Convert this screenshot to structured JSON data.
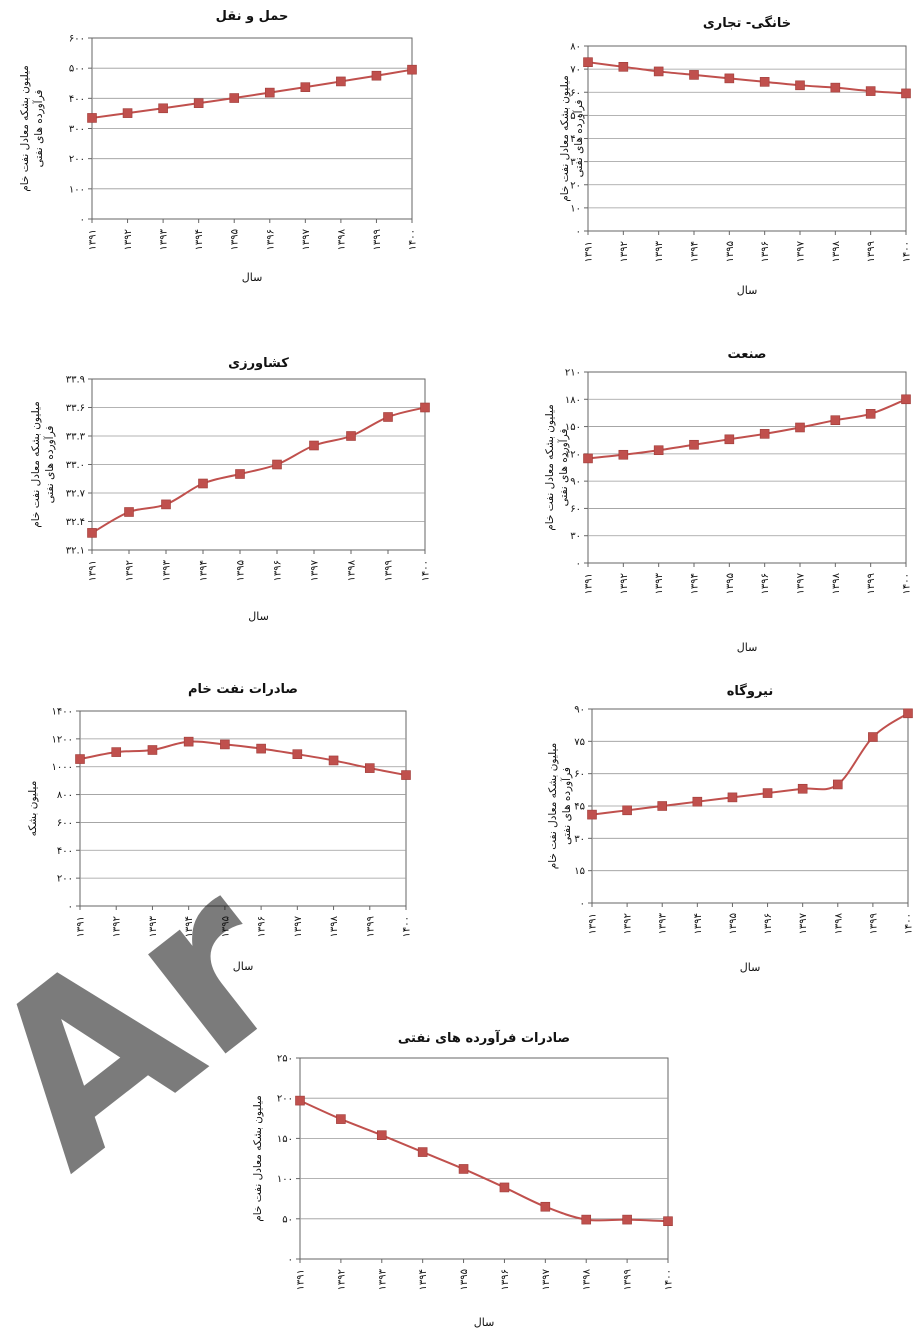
{
  "style": {
    "line_color": "#c0504d",
    "marker_color": "#c0504d",
    "grid_color": "#9a9a9a",
    "watermark_color": "#c8c8c8"
  },
  "watermark": {
    "text": "Ar",
    "icon": "watermark-logo"
  },
  "chart_data": [
    {
      "id": "transport",
      "type": "line",
      "title": "حمل و نقل",
      "xlabel": "سال",
      "ylabel": [
        "میلیون بشکه معادل نفت خام",
        "فرآورده های نفتی"
      ],
      "categories": [
        "۱۳۹۱",
        "۱۳۹۲",
        "۱۳۹۳",
        "۱۳۹۴",
        "۱۳۹۵",
        "۱۳۹۶",
        "۱۳۹۷",
        "۱۳۹۸",
        "۱۳۹۹",
        "۱۴۰۰"
      ],
      "values": [
        335,
        351,
        367,
        384,
        401,
        419,
        437,
        456,
        475,
        495
      ],
      "ylim": [
        0,
        600
      ],
      "yticks": [
        0,
        100,
        200,
        300,
        400,
        500,
        600
      ],
      "ytick_labels": [
        "۰",
        "۱۰۰",
        "۲۰۰",
        "۳۰۰",
        "۴۰۰",
        "۵۰۰",
        "۶۰۰"
      ],
      "grid": true
    },
    {
      "id": "residential",
      "type": "line",
      "title": "خانگی- تجاری",
      "xlabel": "سال",
      "ylabel": [
        "میلیون بشکه معادل نفت خام",
        "فرآورده های نفتی"
      ],
      "categories": [
        "۱۳۹۱",
        "۱۳۹۲",
        "۱۳۹۳",
        "۱۳۹۴",
        "۱۳۹۵",
        "۱۳۹۶",
        "۱۳۹۷",
        "۱۳۹۸",
        "۱۳۹۹",
        "۱۴۰۰"
      ],
      "values": [
        73,
        71,
        69,
        67.5,
        66,
        64.5,
        63,
        62,
        60.5,
        59.5
      ],
      "ylim": [
        0,
        80
      ],
      "yticks": [
        0,
        10,
        20,
        30,
        40,
        50,
        60,
        70,
        80
      ],
      "ytick_labels": [
        "۰",
        "۱۰",
        "۲۰",
        "۳۰",
        "۴۰",
        "۵۰",
        "۶۰",
        "۷۰",
        "۸۰"
      ],
      "grid": true
    },
    {
      "id": "agriculture",
      "type": "line",
      "title": "کشاورزی",
      "xlabel": "سال",
      "ylabel": [
        "میلیون بشکه معادل نفت خام",
        "فرآورده های نفتی"
      ],
      "categories": [
        "۱۳۹۱",
        "۱۳۹۲",
        "۱۳۹۳",
        "۱۳۹۴",
        "۱۳۹۵",
        "۱۳۹۶",
        "۱۳۹۷",
        "۱۳۹۸",
        "۱۳۹۹",
        "۱۴۰۰"
      ],
      "values": [
        32.28,
        32.5,
        32.58,
        32.8,
        32.9,
        33.0,
        33.2,
        33.3,
        33.5,
        33.6
      ],
      "ylim": [
        32.1,
        33.9
      ],
      "yticks": [
        32.1,
        32.4,
        32.7,
        33.0,
        33.3,
        33.6,
        33.9
      ],
      "ytick_labels": [
        "۳۲.۱",
        "۳۲.۴",
        "۳۲.۷",
        "۳۳.۰",
        "۳۳.۳",
        "۳۳.۶",
        "۳۳.۹"
      ],
      "grid": true
    },
    {
      "id": "industry",
      "type": "line",
      "title": "صنعت",
      "xlabel": "سال",
      "ylabel": [
        "میلیون بشکه معادل نفت خام",
        "فرآورده های نفتی"
      ],
      "categories": [
        "۱۳۹۱",
        "۱۳۹۲",
        "۱۳۹۳",
        "۱۳۹۴",
        "۱۳۹۵",
        "۱۳۹۶",
        "۱۳۹۷",
        "۱۳۹۸",
        "۱۳۹۹",
        "۱۴۰۰"
      ],
      "values": [
        115,
        119,
        124,
        130,
        136,
        142,
        149,
        157,
        164,
        180
      ],
      "ylim": [
        0,
        210
      ],
      "yticks": [
        0,
        30,
        60,
        90,
        120,
        150,
        180,
        210
      ],
      "ytick_labels": [
        "۰",
        "۳۰",
        "۶۰",
        "۹۰",
        "۱۲۰",
        "۱۵۰",
        "۱۸۰",
        "۲۱۰"
      ],
      "grid": true
    },
    {
      "id": "crude-export",
      "type": "line",
      "title": "صادرات نفت خام",
      "xlabel": "سال",
      "ylabel": [
        "میلیون بشکه"
      ],
      "categories": [
        "۱۳۹۱",
        "۱۳۹۲",
        "۱۳۹۳",
        "۱۳۹۴",
        "۱۳۹۵",
        "۱۳۹۶",
        "۱۳۹۷",
        "۱۳۹۸",
        "۱۳۹۹",
        "۱۴۰۰"
      ],
      "values": [
        1055,
        1105,
        1120,
        1180,
        1160,
        1130,
        1090,
        1045,
        990,
        940
      ],
      "ylim": [
        0,
        1400
      ],
      "yticks": [
        0,
        200,
        400,
        600,
        800,
        1000,
        1200,
        1400
      ],
      "ytick_labels": [
        "۰",
        "۲۰۰",
        "۴۰۰",
        "۶۰۰",
        "۸۰۰",
        "۱۰۰۰",
        "۱۲۰۰",
        "۱۴۰۰"
      ],
      "grid": true
    },
    {
      "id": "power-plant",
      "type": "line",
      "title": "نیروگاه",
      "xlabel": "سال",
      "ylabel": [
        "میلیون بشکه معادل نفت خام",
        "فرآورده های نفتی"
      ],
      "categories": [
        "۱۳۹۱",
        "۱۳۹۲",
        "۱۳۹۳",
        "۱۳۹۴",
        "۱۳۹۵",
        "۱۳۹۶",
        "۱۳۹۷",
        "۱۳۹۸",
        "۱۳۹۹",
        "۱۴۰۰"
      ],
      "values": [
        41,
        43,
        45,
        47,
        49,
        51,
        53,
        55,
        77,
        88
      ],
      "ylim": [
        0,
        90
      ],
      "yticks": [
        0,
        15,
        30,
        45,
        60,
        75,
        90
      ],
      "ytick_labels": [
        "۰",
        "۱۵",
        "۳۰",
        "۴۵",
        "۶۰",
        "۷۵",
        "۹۰"
      ],
      "grid": true
    },
    {
      "id": "product-export",
      "type": "line",
      "title": "صادرات فرآورده های نفتی",
      "xlabel": "سال",
      "ylabel": [
        "میلیون بشکه معادل نفت خام"
      ],
      "categories": [
        "۱۳۹۱",
        "۱۳۹۲",
        "۱۳۹۳",
        "۱۳۹۴",
        "۱۳۹۵",
        "۱۳۹۶",
        "۱۳۹۷",
        "۱۳۹۸",
        "۱۳۹۹",
        "۱۴۰۰"
      ],
      "values": [
        197,
        174,
        154,
        133,
        112,
        89,
        65,
        49,
        49,
        47
      ],
      "ylim": [
        0,
        250
      ],
      "yticks": [
        0,
        50,
        100,
        150,
        200,
        250
      ],
      "ytick_labels": [
        "۰",
        "۵۰",
        "۱۰۰",
        "۱۵۰",
        "۲۰۰",
        "۲۵۰"
      ],
      "grid": true
    }
  ]
}
